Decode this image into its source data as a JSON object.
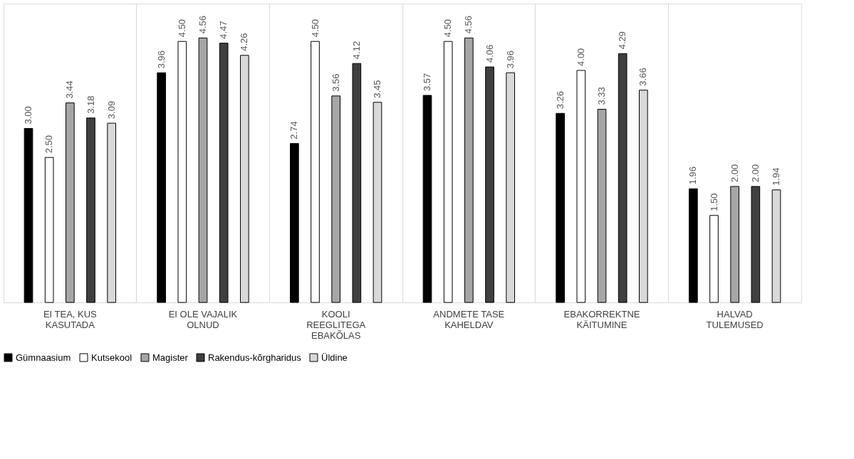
{
  "chart_data": {
    "type": "bar",
    "categories": [
      "EI TEA, KUS KASUTADA",
      "EI OLE VAJALIK OLNUD",
      "KOOLI REEGLITEGA EBAKÕLAS",
      "ANDMETE TASE KAHELDAV",
      "EBAKORREKTNE KÄITUMINE",
      "HALVAD TULEMUSED"
    ],
    "series": [
      {
        "name": "Gümnaasium",
        "color": "#000000",
        "values": [
          3.0,
          3.96,
          2.74,
          3.57,
          3.26,
          1.96
        ],
        "value_labels": [
          "3.00",
          "3.96",
          "2.74",
          "3.57",
          "3.26",
          "1.96"
        ]
      },
      {
        "name": "Kutsekool",
        "color": "#ffffff",
        "values": [
          2.5,
          4.5,
          4.5,
          4.5,
          4.0,
          1.5
        ],
        "value_labels": [
          "2.50",
          "4.50",
          "4.50",
          "4.50",
          "4.00",
          "1.50"
        ]
      },
      {
        "name": "Magister",
        "color": "#a6a6a6",
        "values": [
          3.44,
          4.56,
          3.56,
          4.56,
          3.33,
          2.0
        ],
        "value_labels": [
          "3.44",
          "4.56",
          "3.56",
          "4.56",
          "3.33",
          "2.00"
        ]
      },
      {
        "name": "Rakendus-kõrgharidus",
        "color": "#3f3f3f",
        "values": [
          3.18,
          4.47,
          4.12,
          4.06,
          4.29,
          2.0
        ],
        "value_labels": [
          "3.18",
          "4.47",
          "4.12",
          "4.06",
          "4.29",
          "2.00"
        ]
      },
      {
        "name": "Üldine",
        "color": "#d9d9d9",
        "values": [
          3.09,
          4.26,
          3.45,
          3.96,
          3.66,
          1.94
        ],
        "value_labels": [
          "3.09",
          "4.26",
          "3.45",
          "3.96",
          "3.66",
          "1.94"
        ]
      }
    ],
    "grid": "x",
    "legend": "bottom"
  }
}
